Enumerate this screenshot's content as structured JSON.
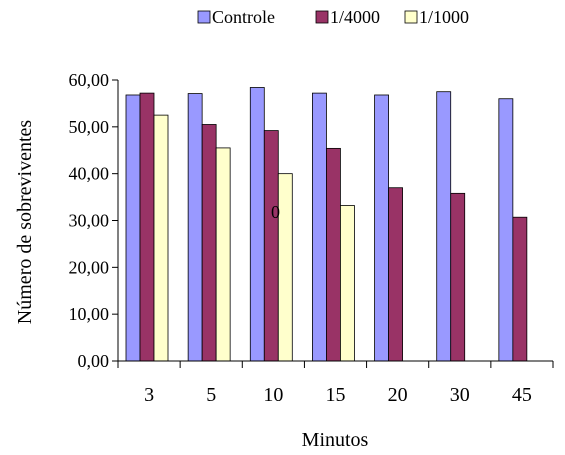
{
  "chart_data": {
    "type": "bar",
    "categories": [
      "3",
      "5",
      "10",
      "15",
      "20",
      "30",
      "45"
    ],
    "series": [
      {
        "name": "Controle",
        "color": "#9999ff",
        "values": [
          56.8,
          57.1,
          58.4,
          57.2,
          56.8,
          57.5,
          56.0
        ]
      },
      {
        "name": "1/4000",
        "color": "#993366",
        "values": [
          57.2,
          50.5,
          49.2,
          45.4,
          37.0,
          35.8,
          30.7
        ]
      },
      {
        "name": "1/1000",
        "color": "#ffffcc",
        "values": [
          52.5,
          45.5,
          40.0,
          33.2,
          null,
          null,
          null
        ]
      }
    ],
    "title": "",
    "xlabel": "Minutos",
    "ylabel": "Número de sobreviventes",
    "ylim": [
      0,
      60
    ],
    "yticks": [
      "0,00",
      "10,00",
      "20,00",
      "30,00",
      "40,00",
      "50,00",
      "60,00"
    ],
    "legend_position": "top",
    "stray_annotation": "0",
    "grid": false
  }
}
